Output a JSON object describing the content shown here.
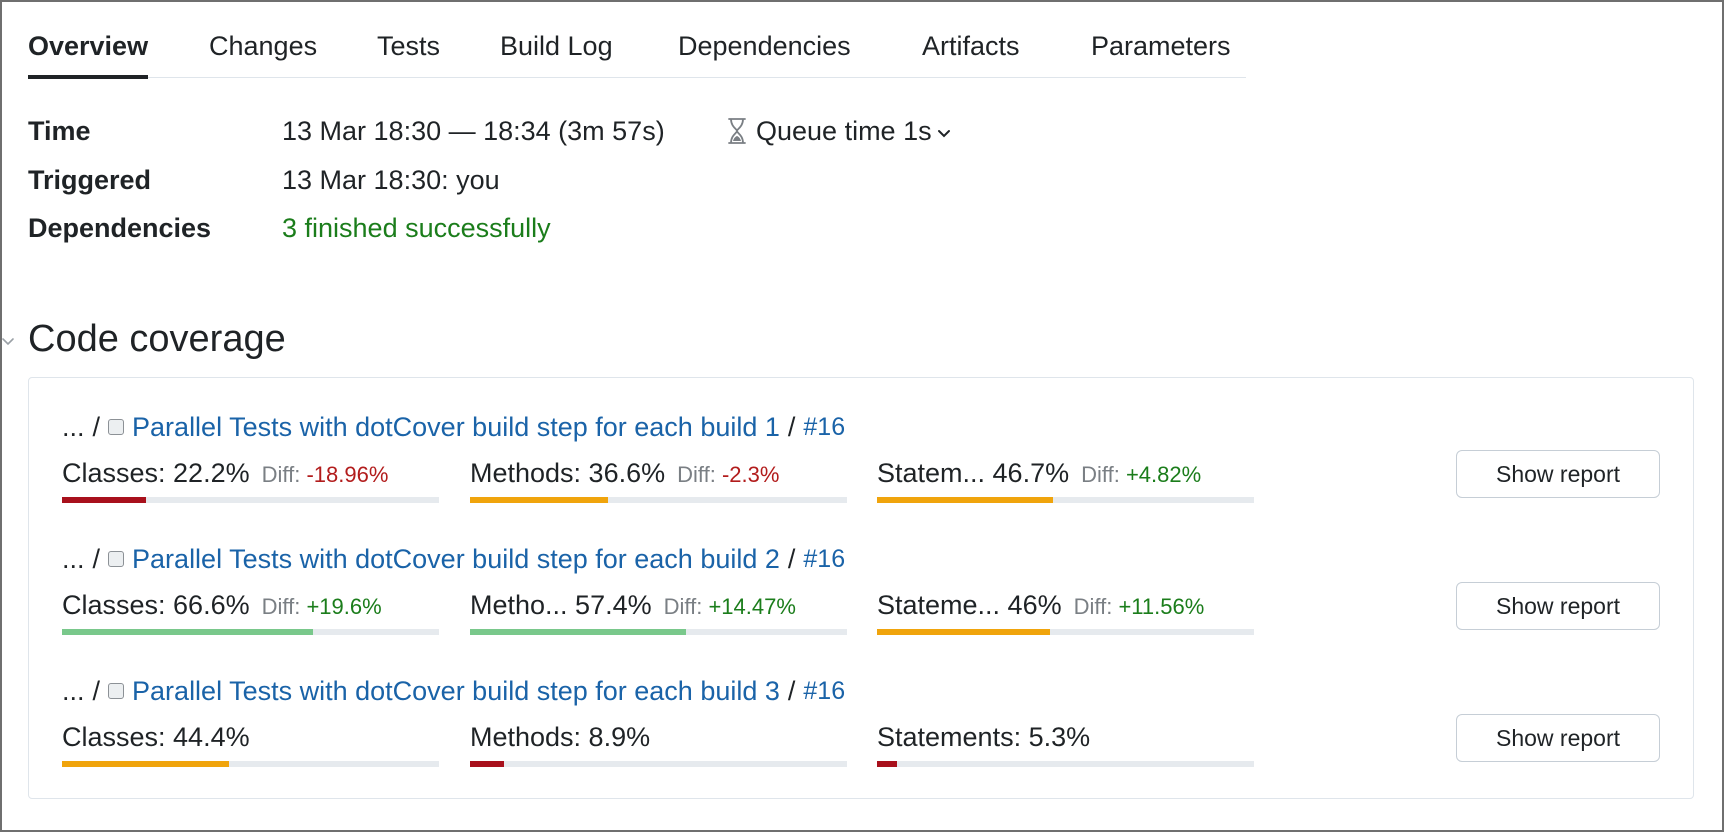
{
  "tabs": [
    {
      "label": "Overview",
      "active": true
    },
    {
      "label": "Changes"
    },
    {
      "label": "Tests"
    },
    {
      "label": "Build Log"
    },
    {
      "label": "Dependencies"
    },
    {
      "label": "Artifacts"
    },
    {
      "label": "Parameters"
    }
  ],
  "info": {
    "time_label": "Time",
    "time_value": "13 Mar 18:30 — 18:34 (3m 57s)",
    "queue_time": "Queue time 1s",
    "triggered_label": "Triggered",
    "triggered_value": "13 Mar 18:30: you",
    "dependencies_label": "Dependencies",
    "dependencies_value": "3 finished successfully"
  },
  "coverage": {
    "title": "Code coverage",
    "builds": [
      {
        "prefix": "...",
        "separator": "/",
        "name": "Parallel Tests with dotCover build step for each build 1",
        "number": "#16",
        "metrics": [
          {
            "label": "Classes: 22.2%",
            "diff_label": "Diff:",
            "diff": "-18.96%",
            "value": 22.2,
            "color": "red"
          },
          {
            "label": "Methods: 36.6%",
            "diff_label": "Diff:",
            "diff": "-2.3%",
            "value": 36.6,
            "color": "orange"
          },
          {
            "label": "Statem...  46.7%",
            "diff_label": "Diff:",
            "diff": "+4.82%",
            "value": 46.7,
            "color": "orange"
          }
        ],
        "button": "Show report"
      },
      {
        "prefix": "...",
        "separator": "/",
        "name": "Parallel Tests with dotCover build step for each build 2",
        "number": "#16",
        "metrics": [
          {
            "label": "Classes: 66.6%",
            "diff_label": "Diff:",
            "diff": "+19.6%",
            "value": 66.6,
            "color": "green"
          },
          {
            "label": "Metho...  57.4%",
            "diff_label": "Diff:",
            "diff": "+14.47%",
            "value": 57.4,
            "color": "green"
          },
          {
            "label": "Stateme...  46%",
            "diff_label": "Diff:",
            "diff": "+11.56%",
            "value": 46,
            "color": "orange"
          }
        ],
        "button": "Show report"
      },
      {
        "prefix": "...",
        "separator": "/",
        "name": "Parallel Tests with dotCover build step for each build 3",
        "number": "#16",
        "metrics": [
          {
            "label": "Classes: 44.4%",
            "value": 44.4,
            "color": "orange"
          },
          {
            "label": "Methods: 8.9%",
            "value": 8.9,
            "color": "red"
          },
          {
            "label": "Statements: 5.3%",
            "value": 5.3,
            "color": "red"
          }
        ],
        "button": "Show report"
      }
    ]
  }
}
